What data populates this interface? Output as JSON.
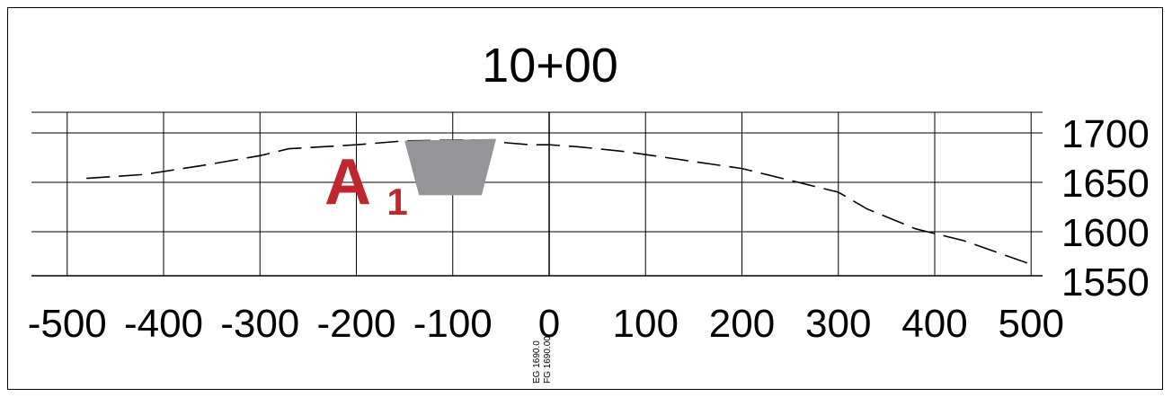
{
  "title": "10+00",
  "x_axis": {
    "min": -500,
    "max": 500,
    "ticks": [
      -500,
      -400,
      -300,
      -200,
      -100,
      0,
      100,
      200,
      300,
      400,
      500
    ]
  },
  "y_axis": {
    "min": 1550,
    "max": 1700,
    "ticks": [
      1700,
      1650,
      1600,
      1550
    ]
  },
  "ground_profile": {
    "style": "dashed",
    "points": [
      [
        -480,
        1654
      ],
      [
        -420,
        1658
      ],
      [
        -360,
        1667
      ],
      [
        -300,
        1677
      ],
      [
        -270,
        1684
      ],
      [
        -200,
        1688
      ],
      [
        -150,
        1692
      ],
      [
        -80,
        1693
      ],
      [
        -20,
        1688
      ],
      [
        0,
        1688
      ],
      [
        30,
        1686
      ],
      [
        80,
        1681
      ],
      [
        150,
        1671
      ],
      [
        200,
        1664
      ],
      [
        250,
        1652
      ],
      [
        300,
        1640
      ],
      [
        330,
        1623
      ],
      [
        380,
        1603
      ],
      [
        430,
        1591
      ],
      [
        500,
        1567
      ]
    ]
  },
  "section_shape": {
    "color": "#939598",
    "points": [
      [
        -150,
        1692
      ],
      [
        -55,
        1694
      ],
      [
        -70,
        1637
      ],
      [
        -135,
        1637
      ]
    ]
  },
  "area_label": {
    "letter": "A",
    "subscript": "1",
    "color": "#c0272d"
  },
  "station_labels": {
    "eg": "EG 1690.0",
    "fg": "FG 1690.00"
  }
}
